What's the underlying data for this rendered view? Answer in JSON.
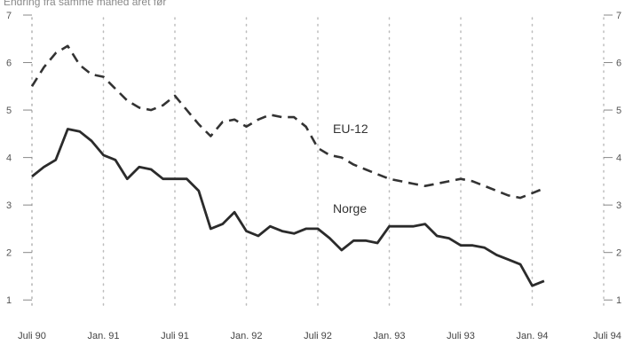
{
  "chart_data": {
    "type": "line",
    "subtitle": "Endring fra samme måned året før",
    "title": "",
    "xlabel": "",
    "ylabel": "",
    "ylim": [
      0.5,
      7
    ],
    "yticks": [
      1,
      2,
      3,
      4,
      5,
      6,
      7
    ],
    "xticks": [
      {
        "label": "Juli 90",
        "month": 0
      },
      {
        "label": "Jan. 91",
        "month": 6
      },
      {
        "label": "Juli 91",
        "month": 12
      },
      {
        "label": "Jan. 92",
        "month": 18
      },
      {
        "label": "Juli 92",
        "month": 24
      },
      {
        "label": "Jan. 93",
        "month": 30
      },
      {
        "label": "Juli 93",
        "month": 36
      },
      {
        "label": "Jan. 94",
        "month": 42
      },
      {
        "label": "Juli 94",
        "month": 48
      }
    ],
    "grid": "vertical-dotted",
    "series": [
      {
        "name": "EU-12",
        "style": "dashed",
        "color": "#333333",
        "x": [
          0,
          1,
          2,
          3,
          4,
          5,
          6,
          7,
          8,
          9,
          10,
          11,
          12,
          13,
          14,
          15,
          16,
          17,
          18,
          19,
          20,
          21,
          22,
          23,
          24,
          25,
          26,
          27,
          28,
          29,
          30,
          31,
          32,
          33,
          34,
          35,
          36,
          37,
          38,
          39,
          40,
          41,
          42,
          43
        ],
        "values": [
          5.5,
          5.9,
          6.2,
          6.35,
          5.95,
          5.75,
          5.7,
          5.45,
          5.2,
          5.05,
          5.0,
          5.1,
          5.3,
          5.0,
          4.7,
          4.45,
          4.75,
          4.8,
          4.65,
          4.8,
          4.9,
          4.85,
          4.85,
          4.65,
          4.2,
          4.05,
          4.0,
          3.85,
          3.75,
          3.65,
          3.55,
          3.5,
          3.45,
          3.4,
          3.45,
          3.5,
          3.55,
          3.5,
          3.4,
          3.3,
          3.2,
          3.15,
          3.25,
          3.35
        ]
      },
      {
        "name": "Norge",
        "style": "solid",
        "color": "#2b2b2b",
        "x": [
          0,
          1,
          2,
          3,
          4,
          5,
          6,
          7,
          8,
          9,
          10,
          11,
          12,
          13,
          14,
          15,
          16,
          17,
          18,
          19,
          20,
          21,
          22,
          23,
          24,
          25,
          26,
          27,
          28,
          29,
          30,
          31,
          32,
          33,
          34,
          35,
          36,
          37,
          38,
          39,
          40,
          41,
          42,
          43
        ],
        "values": [
          3.6,
          3.8,
          3.95,
          4.6,
          4.55,
          4.35,
          4.05,
          3.95,
          3.55,
          3.8,
          3.75,
          3.55,
          3.55,
          3.55,
          3.3,
          2.5,
          2.6,
          2.85,
          2.45,
          2.35,
          2.55,
          2.45,
          2.4,
          2.5,
          2.5,
          2.3,
          2.05,
          2.25,
          2.25,
          2.2,
          2.55,
          2.55,
          2.55,
          2.6,
          2.35,
          2.3,
          2.15,
          2.15,
          2.1,
          1.95,
          1.85,
          1.75,
          1.3,
          1.4
        ]
      }
    ]
  }
}
